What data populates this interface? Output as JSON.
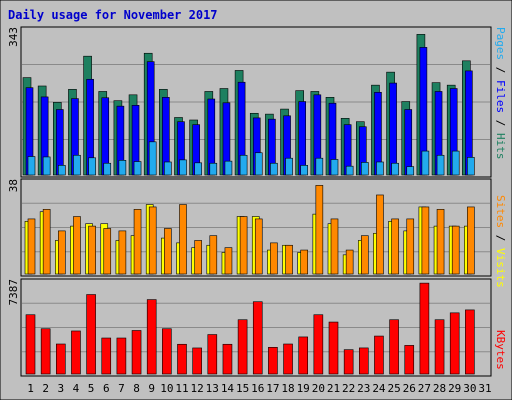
{
  "chart_data": {
    "type": "bar",
    "title": "Daily usage for November 2017",
    "categories": [
      "1",
      "2",
      "3",
      "4",
      "5",
      "6",
      "7",
      "8",
      "9",
      "10",
      "11",
      "12",
      "13",
      "14",
      "15",
      "16",
      "17",
      "18",
      "19",
      "20",
      "21",
      "22",
      "23",
      "24",
      "25",
      "26",
      "27",
      "28",
      "29",
      "30",
      "31"
    ],
    "weekend_days": [
      "4",
      "5",
      "11",
      "12",
      "18",
      "19",
      "25",
      "26"
    ],
    "panels": {
      "top": {
        "max_label": "343",
        "ylim": [
          0,
          343
        ],
        "series": [
          {
            "name": "Hits",
            "color": "#1e8060",
            "values": [
              232,
              212,
              173,
              204,
              283,
              199,
              177,
              191,
              290,
              204,
              137,
              131,
              199,
              206,
              249,
              147,
              145,
              157,
              201,
              199,
              185,
              135,
              127,
              214,
              245,
              175,
              335,
              220,
              214,
              272
            ]
          },
          {
            "name": "Files",
            "color": "#0000ff",
            "values": [
              208,
              186,
              156,
              182,
              228,
              184,
              164,
              166,
              270,
              185,
              127,
              120,
              181,
              172,
              221,
              136,
              133,
              141,
              175,
              191,
              171,
              120,
              115,
              197,
              219,
              156,
              304,
              199,
              206,
              248
            ]
          },
          {
            "name": "Pages",
            "color": "#22aaee",
            "values": [
              44,
              43,
              23,
              47,
              41,
              28,
              35,
              32,
              79,
              31,
              36,
              29,
              28,
              33,
              47,
              53,
              28,
              40,
              23,
              40,
              37,
              21,
              30,
              31,
              28,
              20,
              57,
              47,
              57,
              42
            ]
          }
        ],
        "side_label": [
          "Pages",
          "Files",
          "Hits"
        ]
      },
      "middle": {
        "max_label": "38",
        "ylim": [
          0,
          38
        ],
        "series": [
          {
            "name": "Visits",
            "color": "#ffff00",
            "values": [
              22,
              26,
              14,
              20,
              21,
              21,
              14,
              16,
              29,
              15,
              13,
              11,
              12,
              9,
              24,
              24,
              10,
              12,
              9,
              25,
              21,
              8,
              14,
              17,
              22,
              18,
              28,
              20,
              20,
              20
            ]
          },
          {
            "name": "Sites",
            "color": "#ff8800",
            "values": [
              23,
              27,
              18,
              24,
              20,
              19,
              18,
              27,
              28,
              19,
              29,
              14,
              16,
              11,
              24,
              23,
              13,
              12,
              10,
              37,
              23,
              10,
              16,
              33,
              23,
              23,
              28,
              27,
              20,
              28
            ]
          }
        ],
        "side_label": [
          "Sites",
          "Visits"
        ]
      },
      "bottom": {
        "max_label": "7387",
        "ylim": [
          0,
          7387
        ],
        "series": [
          {
            "name": "KBytes",
            "color": "#ff0000",
            "values": [
              4811,
              3675,
              2435,
              3493,
              6451,
              2921,
              2921,
              3532,
              6041,
              3675,
              2414,
              2114,
              3203,
              2414,
              4406,
              5868,
              2166,
              2435,
              3009,
              4811,
              4217,
              1977,
              2117,
              3080,
              4406,
              2322,
              7377,
              4406,
              4965,
              5203
            ]
          }
        ],
        "side_label": [
          "KBytes"
        ]
      }
    }
  }
}
